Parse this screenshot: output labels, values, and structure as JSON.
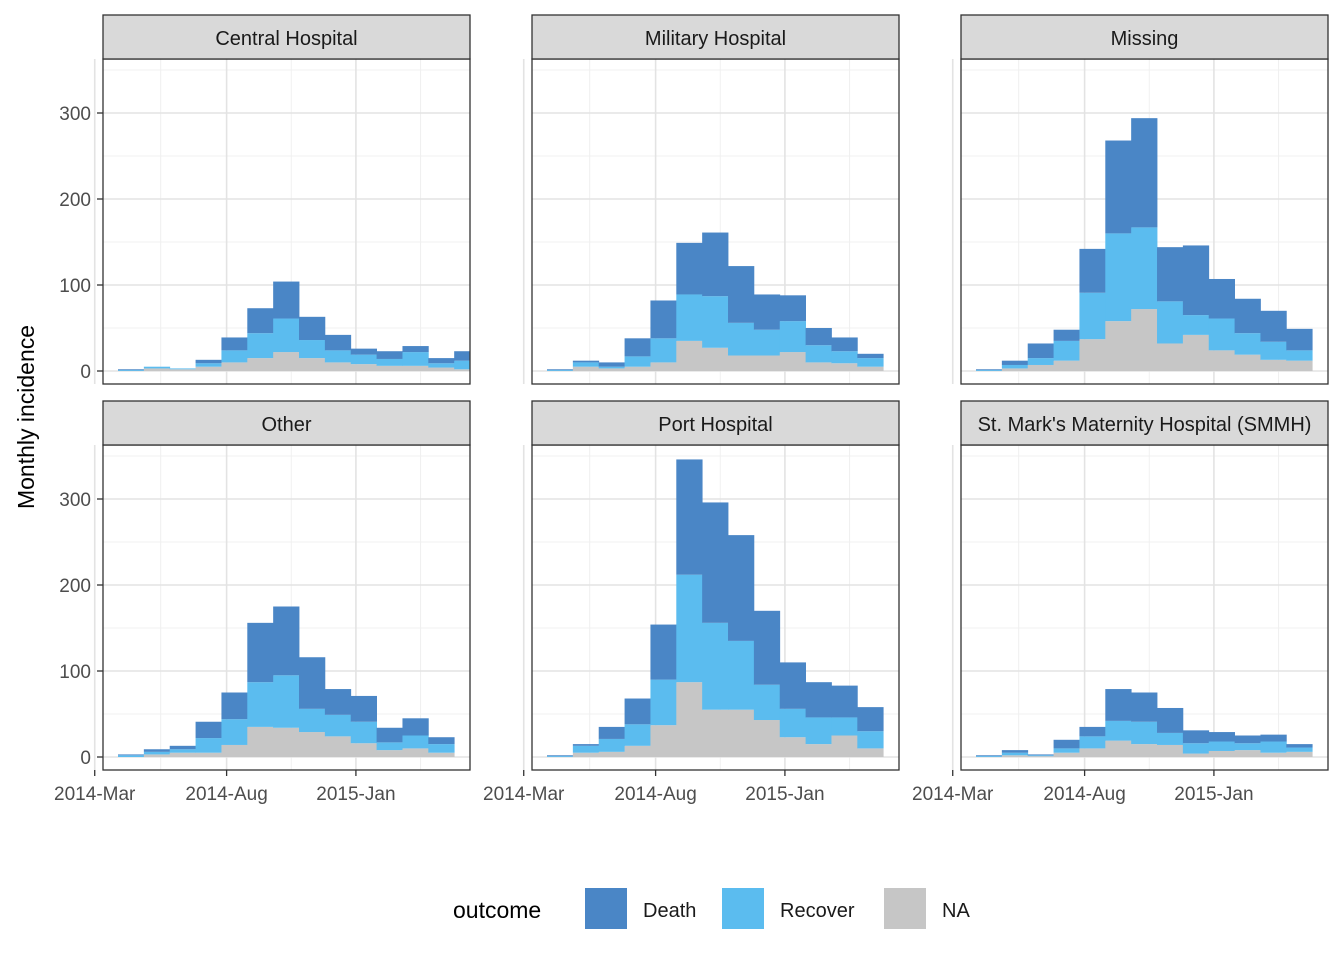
{
  "chart_data": {
    "type": "bar",
    "subtype": "stacked-histogram-facets",
    "ylabel": "Monthly incidence",
    "xlabel": "",
    "title": "",
    "ylim": [
      0,
      360
    ],
    "yticks": [
      0,
      100,
      200,
      300
    ],
    "xticks": [
      {
        "label": "2014-Mar",
        "index": -0.9
      },
      {
        "label": "2014-Aug",
        "index": 4.2
      },
      {
        "label": "2015-Jan",
        "index": 9.2
      }
    ],
    "legend": {
      "title": "outcome",
      "position": "bottom",
      "entries": [
        "Death",
        "Recover",
        "NA"
      ]
    },
    "colors": {
      "Death": "#4a86c6",
      "Recover": "#5bbcef",
      "NA": "#c6c6c6"
    },
    "facets": [
      {
        "name": "Central Hospital",
        "bars": [
          {
            "na": 0,
            "recover": 1,
            "death": 1
          },
          {
            "na": 3,
            "recover": 2,
            "death": 0
          },
          {
            "na": 2,
            "recover": 1,
            "death": 0
          },
          {
            "na": 5,
            "recover": 4,
            "death": 4
          },
          {
            "na": 10,
            "recover": 14,
            "death": 15
          },
          {
            "na": 15,
            "recover": 29,
            "death": 29
          },
          {
            "na": 22,
            "recover": 39,
            "death": 43
          },
          {
            "na": 15,
            "recover": 21,
            "death": 27
          },
          {
            "na": 10,
            "recover": 14,
            "death": 18
          },
          {
            "na": 8,
            "recover": 11,
            "death": 7
          },
          {
            "na": 6,
            "recover": 8,
            "death": 9
          },
          {
            "na": 6,
            "recover": 16,
            "death": 7
          },
          {
            "na": 4,
            "recover": 5,
            "death": 6
          },
          {
            "na": 2,
            "recover": 10,
            "death": 11
          }
        ]
      },
      {
        "name": "Military Hospital",
        "bars": [
          {
            "na": 0,
            "recover": 1,
            "death": 1
          },
          {
            "na": 5,
            "recover": 5,
            "death": 2
          },
          {
            "na": 3,
            "recover": 2,
            "death": 5
          },
          {
            "na": 5,
            "recover": 12,
            "death": 21
          },
          {
            "na": 10,
            "recover": 28,
            "death": 44
          },
          {
            "na": 35,
            "recover": 54,
            "death": 60
          },
          {
            "na": 27,
            "recover": 60,
            "death": 74
          },
          {
            "na": 18,
            "recover": 38,
            "death": 66
          },
          {
            "na": 18,
            "recover": 30,
            "death": 41
          },
          {
            "na": 22,
            "recover": 36,
            "death": 30
          },
          {
            "na": 10,
            "recover": 20,
            "death": 20
          },
          {
            "na": 9,
            "recover": 14,
            "death": 16
          },
          {
            "na": 5,
            "recover": 10,
            "death": 5
          }
        ]
      },
      {
        "name": "Missing",
        "bars": [
          {
            "na": 0,
            "recover": 1,
            "death": 1
          },
          {
            "na": 3,
            "recover": 4,
            "death": 5
          },
          {
            "na": 7,
            "recover": 8,
            "death": 17
          },
          {
            "na": 12,
            "recover": 23,
            "death": 13
          },
          {
            "na": 37,
            "recover": 54,
            "death": 51
          },
          {
            "na": 58,
            "recover": 102,
            "death": 108
          },
          {
            "na": 72,
            "recover": 95,
            "death": 127
          },
          {
            "na": 32,
            "recover": 49,
            "death": 63
          },
          {
            "na": 42,
            "recover": 23,
            "death": 81
          },
          {
            "na": 24,
            "recover": 37,
            "death": 46
          },
          {
            "na": 19,
            "recover": 25,
            "death": 40
          },
          {
            "na": 13,
            "recover": 21,
            "death": 36
          },
          {
            "na": 12,
            "recover": 12,
            "death": 25
          }
        ]
      },
      {
        "name": "Other",
        "bars": [
          {
            "na": 0,
            "recover": 2,
            "death": 1
          },
          {
            "na": 3,
            "recover": 3,
            "death": 3
          },
          {
            "na": 5,
            "recover": 4,
            "death": 4
          },
          {
            "na": 5,
            "recover": 17,
            "death": 19
          },
          {
            "na": 14,
            "recover": 30,
            "death": 31
          },
          {
            "na": 35,
            "recover": 52,
            "death": 69
          },
          {
            "na": 34,
            "recover": 61,
            "death": 80
          },
          {
            "na": 29,
            "recover": 27,
            "death": 60
          },
          {
            "na": 24,
            "recover": 25,
            "death": 30
          },
          {
            "na": 16,
            "recover": 25,
            "death": 30
          },
          {
            "na": 8,
            "recover": 9,
            "death": 17
          },
          {
            "na": 10,
            "recover": 15,
            "death": 20
          },
          {
            "na": 5,
            "recover": 10,
            "death": 8
          }
        ]
      },
      {
        "name": "Port Hospital",
        "bars": [
          {
            "na": 0,
            "recover": 1,
            "death": 1
          },
          {
            "na": 5,
            "recover": 8,
            "death": 2
          },
          {
            "na": 6,
            "recover": 15,
            "death": 14
          },
          {
            "na": 13,
            "recover": 25,
            "death": 30
          },
          {
            "na": 37,
            "recover": 53,
            "death": 64
          },
          {
            "na": 87,
            "recover": 125,
            "death": 134
          },
          {
            "na": 55,
            "recover": 101,
            "death": 140
          },
          {
            "na": 55,
            "recover": 80,
            "death": 123
          },
          {
            "na": 43,
            "recover": 41,
            "death": 86
          },
          {
            "na": 23,
            "recover": 33,
            "death": 54
          },
          {
            "na": 15,
            "recover": 31,
            "death": 41
          },
          {
            "na": 25,
            "recover": 21,
            "death": 37
          },
          {
            "na": 10,
            "recover": 20,
            "death": 28
          }
        ]
      },
      {
        "name": "St. Mark's Maternity Hospital (SMMH)",
        "bars": [
          {
            "na": 0,
            "recover": 1,
            "death": 1
          },
          {
            "na": 2,
            "recover": 3,
            "death": 3
          },
          {
            "na": 1,
            "recover": 1,
            "death": 1
          },
          {
            "na": 5,
            "recover": 5,
            "death": 10
          },
          {
            "na": 10,
            "recover": 14,
            "death": 11
          },
          {
            "na": 19,
            "recover": 23,
            "death": 37
          },
          {
            "na": 15,
            "recover": 26,
            "death": 34
          },
          {
            "na": 14,
            "recover": 14,
            "death": 29
          },
          {
            "na": 4,
            "recover": 12,
            "death": 15
          },
          {
            "na": 7,
            "recover": 11,
            "death": 11
          },
          {
            "na": 8,
            "recover": 8,
            "death": 9
          },
          {
            "na": 5,
            "recover": 13,
            "death": 8
          },
          {
            "na": 6,
            "recover": 5,
            "death": 4
          }
        ]
      }
    ]
  }
}
